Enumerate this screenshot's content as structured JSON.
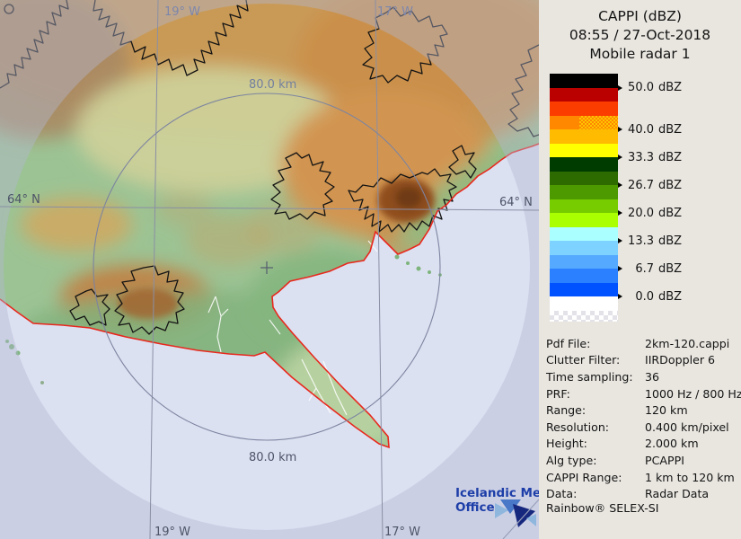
{
  "panel": {
    "background": "#e9e6e0",
    "title_lines": [
      "CAPPI (dBZ)",
      "08:55 / 27-Oct-2018",
      "Mobile radar 1"
    ],
    "scale": {
      "unit": "dBZ",
      "bands": [
        {
          "color": "#000000"
        },
        {
          "color": "#bb0000"
        },
        {
          "color": "#fb3d00"
        },
        {
          "color": "#ff8800",
          "pattern": "checker",
          "pattern_color": "#ffc400"
        },
        {
          "color": "#ffbb00"
        },
        {
          "color": "#ffff00"
        },
        {
          "color": "#003c00"
        },
        {
          "color": "#2d6a00"
        },
        {
          "color": "#4c9900"
        },
        {
          "color": "#77cc00"
        },
        {
          "color": "#aaff00"
        },
        {
          "color": "#aaffff"
        },
        {
          "color": "#7dd2ff"
        },
        {
          "color": "#55aaff"
        },
        {
          "color": "#2b80ff"
        },
        {
          "color": "#0051ff"
        },
        {
          "color": "#ffffff"
        },
        {
          "color": "#ffffff",
          "pattern": "checker",
          "pattern_color": "#e2e2e8",
          "full_width": true,
          "height": 12
        }
      ],
      "labels": [
        {
          "text": "50.0 dBZ",
          "boundary": 1
        },
        {
          "text": "40.0 dBZ",
          "boundary": 4
        },
        {
          "text": "33.3 dBZ",
          "boundary": 6
        },
        {
          "text": "26.7 dBZ",
          "boundary": 8
        },
        {
          "text": "20.0 dBZ",
          "boundary": 10
        },
        {
          "text": "13.3 dBZ",
          "boundary": 12
        },
        {
          "text": "6.7 dBZ",
          "boundary": 14
        },
        {
          "text": "0.0 dBZ",
          "boundary": 16
        }
      ]
    },
    "metadata": [
      {
        "label": "Pdf File:",
        "value": "2km-120.cappi"
      },
      {
        "label": "Clutter Filter:",
        "value": "IIRDoppler 6"
      },
      {
        "label": "Time sampling:",
        "value": "36"
      },
      {
        "label": "PRF:",
        "value": "1000 Hz / 800 Hz"
      },
      {
        "label": "Range:",
        "value": "120 km"
      },
      {
        "label": "Resolution:",
        "value": "0.400 km/pixel"
      },
      {
        "label": "Height:",
        "value": "2.000 km"
      },
      {
        "label": "Alg type:",
        "value": "PCAPPI"
      },
      {
        "label": "CAPPI Range:",
        "value": "1 km to 120 km"
      },
      {
        "label": "Data:",
        "value": "Radar Data"
      }
    ],
    "footer": "Rainbow® SELEX-SI"
  },
  "map": {
    "labels": {
      "meridian_19_top": "19° W",
      "meridian_17_top": "17° W",
      "meridian_19_bottom": "19° W",
      "meridian_17_bottom": "17° W",
      "parallel_64_left": "64° N",
      "parallel_64_right": "64° N",
      "ring_80_top": "80.0 km",
      "ring_80_bottom": "80.0 km"
    },
    "logo": {
      "line1": "Icelandic Met",
      "line2": "Office"
    },
    "colors": {
      "ocean": "#dce1f1",
      "lowland_green": "#9cc394",
      "highland_orange": "#c99a57",
      "outside_range_wash": "#b2b8d2",
      "coastline_red": "#e8281e",
      "grid_gray": "#8a8fa5",
      "logo_blue": "#1d3ea8"
    }
  }
}
